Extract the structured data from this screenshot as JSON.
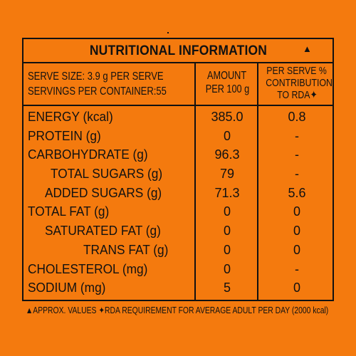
{
  "title": "NUTRITIONAL INFORMATION",
  "title_mark": "▲",
  "serve_size": "SERVE SIZE: 3.9 g PER SERVE",
  "servings": "SERVINGS PER CONTAINER:55",
  "col_amount": [
    "AMOUNT",
    "PER 100 g"
  ],
  "col_rda": [
    "PER SERVE %",
    "CONTRIBUTION",
    "TO RDA✦"
  ],
  "rows": [
    {
      "name": "ENERGY (kcal)",
      "amount": "385.0",
      "rda": "0.8"
    },
    {
      "name": "PROTEIN (g)",
      "amount": "0",
      "rda": "-"
    },
    {
      "name": "CARBOHYDRATE (g)",
      "amount": "96.3",
      "rda": "-"
    },
    {
      "name": "TOTAL SUGARS (g)",
      "amount": "79",
      "rda": "-"
    },
    {
      "name": "ADDED SUGARS (g)",
      "amount": "71.3",
      "rda": "5.6"
    },
    {
      "name": "TOTAL FAT (g)",
      "amount": "0",
      "rda": "0"
    },
    {
      "name": "SATURATED FAT (g)",
      "amount": "0",
      "rda": "0"
    },
    {
      "name": "TRANS FAT (g)",
      "amount": "0",
      "rda": "0"
    },
    {
      "name": "CHOLESTEROL (mg)",
      "amount": "0",
      "rda": "-"
    },
    {
      "name": "SODIUM (mg)",
      "amount": "5",
      "rda": "0"
    }
  ],
  "footnote": "▲APPROX. VALUES ✦RDA REQUIREMENT FOR AVERAGE ADULT PER DAY (2000 kcal)",
  "colors": {
    "background": "#f47a0e",
    "ink": "#111111"
  }
}
